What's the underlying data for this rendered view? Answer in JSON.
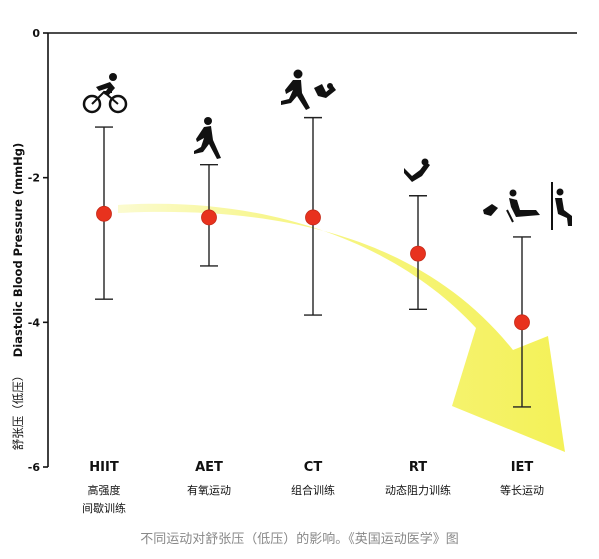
{
  "chart_data": {
    "type": "scatter",
    "title": "",
    "xlabel": "",
    "ylabel": "Diastolic Blood Pressure (mmHg)",
    "ylabel_cn": "舒张压（低压）",
    "ylim": [
      -6,
      0
    ],
    "yticks": [
      "0",
      "-2",
      "-4",
      "-6"
    ],
    "grid": false,
    "categories": [
      {
        "code": "HIIT",
        "cn": [
          "高强度",
          "间歇训练"
        ]
      },
      {
        "code": "AET",
        "cn": [
          "有氧运动"
        ]
      },
      {
        "code": "CT",
        "cn": [
          "组合训练"
        ]
      },
      {
        "code": "RT",
        "cn": [
          "动态阻力训练"
        ]
      },
      {
        "code": "IET",
        "cn": [
          "等长运动"
        ]
      }
    ],
    "series": [
      {
        "values": [
          -2.5,
          -2.55,
          -2.55,
          -3.05,
          -4.0
        ],
        "error_upper": [
          -1.3,
          -1.82,
          -1.17,
          -2.25,
          -2.82
        ],
        "error_lower": [
          -3.68,
          -3.22,
          -3.9,
          -3.82,
          -5.17
        ]
      }
    ],
    "colors": {
      "point": "#e8321e",
      "arrow": "#f6f46f",
      "axis": "#111111"
    },
    "icons": [
      "cyclist-icon",
      "runner-icon",
      "runner-icon",
      "leg-press-icon",
      "leg-extension-icon",
      "wall-squat-icon"
    ]
  },
  "caption": "不同运动对舒张压（低压）的影响。《英国运动医学》图"
}
